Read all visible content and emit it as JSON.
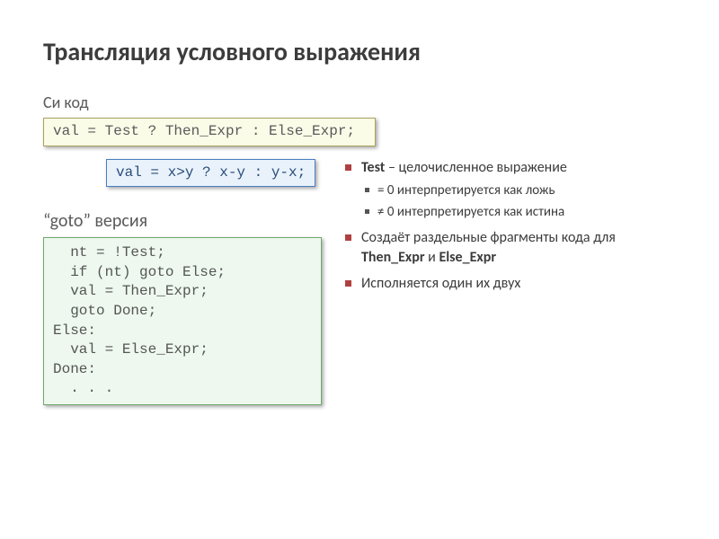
{
  "title": "Трансляция условного выражения",
  "c_label": "Си код",
  "c_code": "val = Test ? Then_Expr : Else_Expr;",
  "example_code": "val = x>y ? x-y : y-x;",
  "goto_label": "“goto” версия",
  "goto_code": "  nt = !Test;\n  if (nt) goto Else;\n  val = Then_Expr;\n  goto Done;\nElse:\n  val = Else_Expr;\nDone:\n  . . .",
  "bullets": {
    "b1_prefix": "Test",
    "b1_rest": " – целочисленное выражение",
    "b1_sub1": "= 0 интерпретируется как ложь",
    "b1_sub2": "≠ 0 интерпретируется как истина",
    "b2_pre": "Создаёт раздельные фрагменты кода для ",
    "b2_then": "Then_Expr",
    "b2_and": " и ",
    "b2_else": "Else_Expr",
    "b3": "Исполняется один их двух"
  },
  "colors": {
    "title": "#3c3c3c",
    "bullet_marker": "#b04040",
    "yellow_bg": "#fbfce8",
    "yellow_border": "#a8a35a",
    "blue_bg": "#e9f2fb",
    "blue_border": "#4a7dc0",
    "green_bg": "#eef8ee",
    "green_border": "#6fa86f"
  },
  "typography": {
    "title_size_pt": 21,
    "body_size_pt": 12,
    "code_font": "Courier New"
  }
}
